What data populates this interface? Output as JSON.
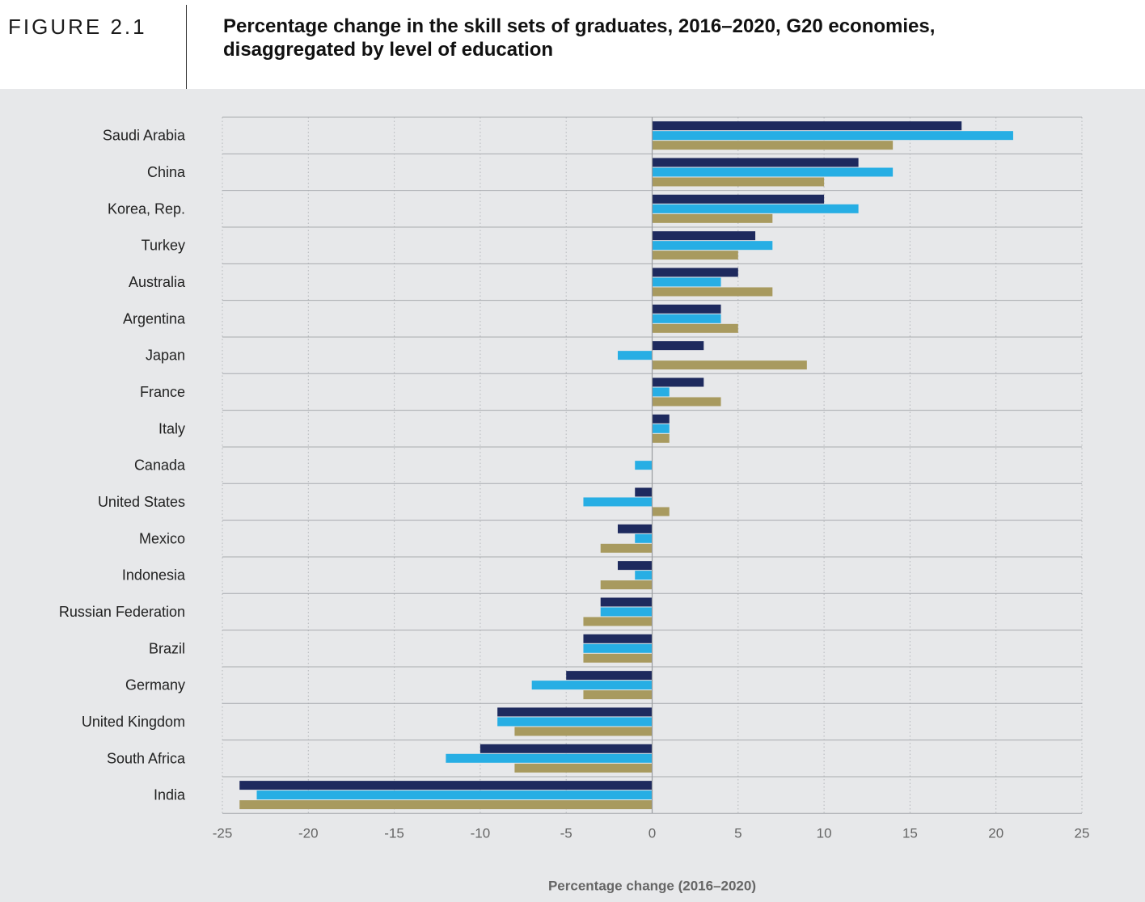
{
  "figure": {
    "label": "FIGURE 2.1",
    "title_line1": "Percentage change in the skill sets of graduates, 2016–2020, G20 economies,",
    "title_line2": "disaggregated by level of education"
  },
  "colors": {
    "background": "#e7e8ea",
    "series": [
      "#1e2a5e",
      "#27aee4",
      "#a89a5f"
    ]
  },
  "chart_data": {
    "type": "bar",
    "orientation": "horizontal",
    "title": "Percentage change in the skill sets of graduates, 2016–2020, G20 economies, disaggregated by level of education",
    "xlabel": "Percentage change (2016–2020)",
    "ylabel": "",
    "xlim": [
      -25,
      25
    ],
    "xticks": [
      -25,
      -20,
      -15,
      -10,
      -5,
      0,
      5,
      10,
      15,
      20,
      25
    ],
    "grid": "vertical dotted",
    "categories": [
      "Saudi Arabia",
      "China",
      "Korea, Rep.",
      "Turkey",
      "Australia",
      "Argentina",
      "Japan",
      "France",
      "Italy",
      "Canada",
      "United States",
      "Mexico",
      "Indonesia",
      "Russian Federation",
      "Brazil",
      "Germany",
      "United Kingdom",
      "South Africa",
      "India"
    ],
    "series": [
      {
        "values": [
          18,
          12,
          10,
          6,
          5,
          4,
          3,
          3,
          1,
          0,
          -1,
          -2,
          -2,
          -3,
          -4,
          -5,
          -9,
          -10,
          -24
        ]
      },
      {
        "values": [
          21,
          14,
          12,
          7,
          4,
          4,
          -2,
          1,
          1,
          -1,
          -4,
          -1,
          -1,
          -3,
          -4,
          -7,
          -9,
          -12,
          -23
        ]
      },
      {
        "values": [
          14,
          10,
          7,
          5,
          7,
          5,
          9,
          4,
          1,
          0,
          1,
          -3,
          -3,
          -4,
          -4,
          -4,
          -8,
          -8,
          -24
        ]
      }
    ]
  }
}
